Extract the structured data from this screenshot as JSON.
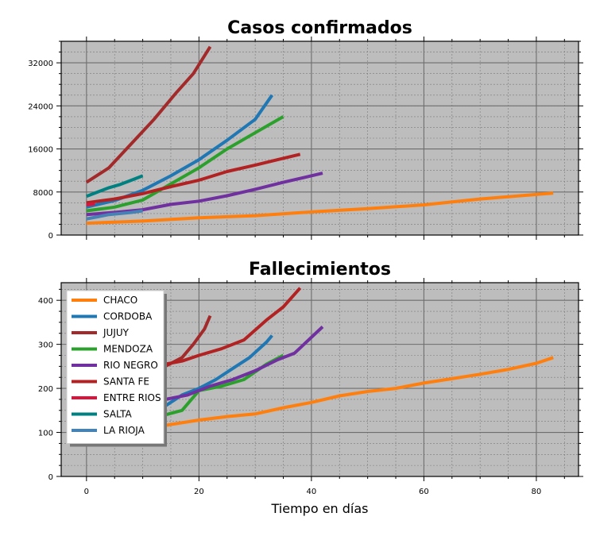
{
  "chart_data": [
    {
      "type": "line",
      "title": "Casos confirmados",
      "xlabel": "",
      "ylabel": "",
      "xlim": [
        -4.5,
        87.5
      ],
      "ylim": [
        0,
        36000
      ],
      "xticks": [
        0,
        20,
        40,
        60,
        80
      ],
      "yticks": [
        0,
        8000,
        16000,
        24000,
        32000
      ],
      "ytick_labels": [
        "0",
        "8000",
        "16000",
        "24000",
        "32000"
      ],
      "show_xtick_labels": false,
      "grid": true,
      "series": [
        {
          "name": "CHACO",
          "color": "#ff7f0e",
          "x": [
            0,
            10,
            20,
            30,
            40,
            50,
            60,
            70,
            83
          ],
          "y": [
            2200,
            2600,
            3200,
            3600,
            4300,
            4900,
            5600,
            6700,
            7800
          ]
        },
        {
          "name": "CORDOBA",
          "color": "#1f77b4",
          "x": [
            0,
            5,
            10,
            15,
            20,
            25,
            30,
            33
          ],
          "y": [
            5200,
            6400,
            8300,
            11000,
            14000,
            17600,
            21500,
            26000
          ]
        },
        {
          "name": "JUJUY",
          "color": "#a32a2a",
          "x": [
            0,
            4,
            8,
            12,
            16,
            19,
            22
          ],
          "y": [
            9800,
            12500,
            17000,
            21500,
            26500,
            30000,
            35000
          ]
        },
        {
          "name": "MENDOZA",
          "color": "#2ca02c",
          "x": [
            0,
            5,
            10,
            15,
            20,
            25,
            30,
            35
          ],
          "y": [
            4500,
            5200,
            6500,
            9500,
            12500,
            16000,
            19000,
            22000
          ]
        },
        {
          "name": "RIO NEGRO",
          "color": "#7030a0",
          "x": [
            0,
            5,
            10,
            15,
            20,
            25,
            30,
            35,
            42
          ],
          "y": [
            3800,
            4200,
            4700,
            5700,
            6300,
            7300,
            8500,
            9800,
            11500
          ]
        },
        {
          "name": "SANTA FE",
          "color": "#b22222",
          "x": [
            0,
            5,
            10,
            15,
            20,
            25,
            30,
            34,
            38
          ],
          "y": [
            6000,
            6700,
            7700,
            9000,
            10200,
            11800,
            13000,
            14000,
            15000
          ]
        },
        {
          "name": "ENTRE RIOS",
          "color": "#dc143c",
          "x": [
            0,
            1.5
          ],
          "y": [
            5600,
            5800
          ]
        },
        {
          "name": "SALTA",
          "color": "#008080",
          "x": [
            0,
            2,
            4,
            6,
            8,
            10
          ],
          "y": [
            7200,
            8000,
            8800,
            9400,
            10200,
            11000
          ]
        },
        {
          "name": "LA RIOJA",
          "color": "#4682b4",
          "x": [
            0,
            2,
            4,
            6,
            8,
            10
          ],
          "y": [
            3000,
            3400,
            3800,
            4000,
            4200,
            4500
          ]
        }
      ]
    },
    {
      "type": "line",
      "title": "Fallecimientos",
      "xlabel": "Tiempo en días",
      "ylabel": "",
      "xlim": [
        -4.5,
        87.5
      ],
      "ylim": [
        0,
        440
      ],
      "xticks": [
        0,
        20,
        40,
        60,
        80
      ],
      "xtick_labels": [
        "0",
        "20",
        "40",
        "60",
        "80"
      ],
      "yticks": [
        0,
        100,
        200,
        300,
        400
      ],
      "ytick_labels": [
        "0",
        "100",
        "200",
        "300",
        "400"
      ],
      "show_xtick_labels": true,
      "grid": true,
      "legend": "upper-left",
      "series": [
        {
          "name": "CHACO",
          "color": "#ff7f0e",
          "x": [
            14,
            20,
            25,
            30,
            35,
            40,
            45,
            50,
            55,
            60,
            65,
            70,
            75,
            80,
            83
          ],
          "y": [
            116,
            128,
            136,
            142,
            156,
            168,
            183,
            193,
            200,
            212,
            222,
            232,
            243,
            257,
            270
          ]
        },
        {
          "name": "CORDOBA",
          "color": "#1f77b4",
          "x": [
            14,
            17,
            20,
            23,
            26,
            29,
            32,
            33
          ],
          "y": [
            160,
            185,
            200,
            220,
            245,
            270,
            305,
            320
          ]
        },
        {
          "name": "JUJUY",
          "color": "#a32a2a",
          "x": [
            14,
            17,
            19,
            21,
            22
          ],
          "y": [
            250,
            270,
            300,
            335,
            365
          ]
        },
        {
          "name": "MENDOZA",
          "color": "#2ca02c",
          "x": [
            14,
            17,
            20,
            24,
            28,
            32,
            35
          ],
          "y": [
            140,
            150,
            195,
            205,
            220,
            255,
            275
          ]
        },
        {
          "name": "RIO NEGRO",
          "color": "#7030a0",
          "x": [
            14,
            18,
            22,
            26,
            30,
            34,
            37,
            42
          ],
          "y": [
            175,
            185,
            205,
            220,
            240,
            265,
            280,
            340
          ]
        },
        {
          "name": "SANTA FE",
          "color": "#b22222",
          "x": [
            14,
            17,
            20,
            24,
            28,
            32,
            35,
            38
          ],
          "y": [
            255,
            262,
            275,
            290,
            310,
            355,
            385,
            428
          ]
        }
      ]
    }
  ]
}
